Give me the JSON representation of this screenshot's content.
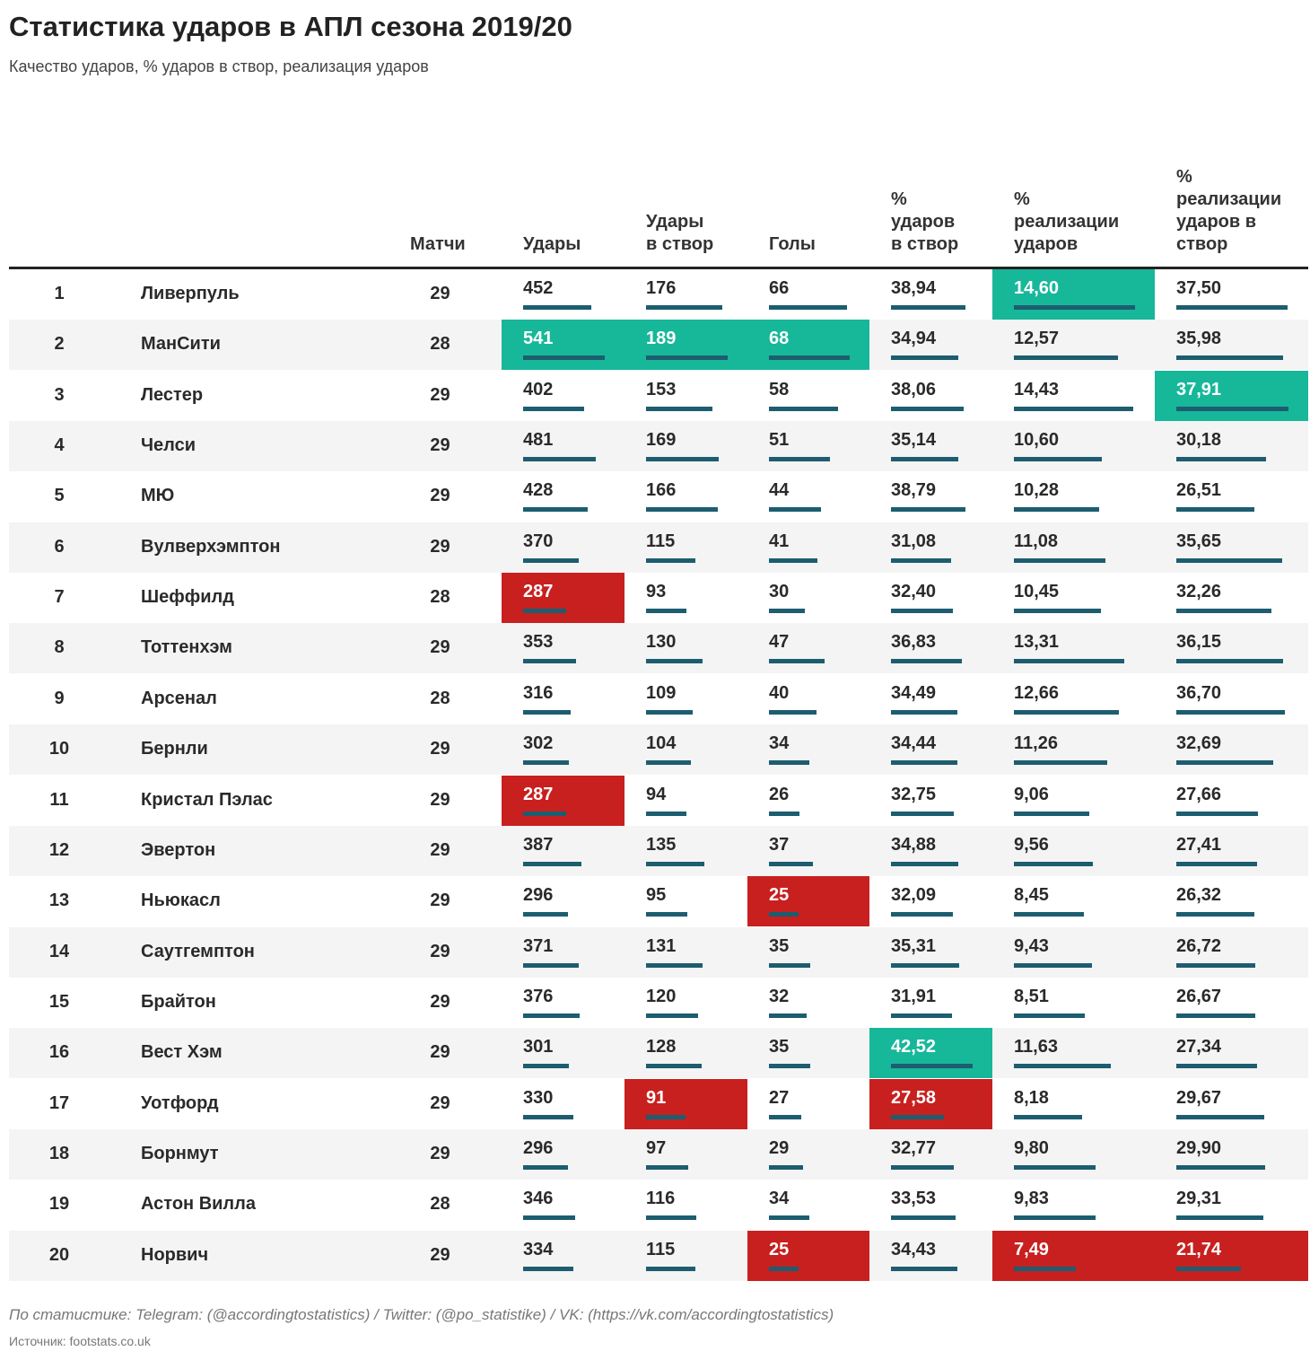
{
  "header": {
    "title": "Статистика ударов в АПЛ сезона 2019/20",
    "subtitle": "Качество ударов, % ударов в створ, реализация ударов"
  },
  "table": {
    "bar_color": "#1d5d70",
    "stripe_color": "#f4f4f4",
    "columns": [
      "Матчи",
      "Удары",
      "Удары\nв створ",
      "Голы",
      "%\nударов\nв створ",
      "%\nреализации\nударов",
      "%\nреализации\nударов в\nствор"
    ],
    "rows": [
      {
        "rank": 1,
        "team": "Ливерпуль",
        "cells": [
          29,
          452,
          176,
          66,
          {
            "value": 38.94,
            "label": "38,94"
          },
          {
            "value": 14.6,
            "label": "14,60",
            "color": "#17b79a"
          },
          {
            "value": 37.5,
            "label": "37,50"
          }
        ]
      },
      {
        "rank": 2,
        "team": "МанСити",
        "cells": [
          28,
          {
            "value": 541,
            "color": "#17b79a"
          },
          {
            "value": 189,
            "color": "#17b79a"
          },
          {
            "value": 68,
            "color": "#17b79a"
          },
          {
            "value": 34.94,
            "label": "34,94"
          },
          {
            "value": 12.57,
            "label": "12,57"
          },
          {
            "value": 35.98,
            "label": "35,98"
          }
        ]
      },
      {
        "rank": 3,
        "team": "Лестер",
        "cells": [
          29,
          402,
          153,
          58,
          {
            "value": 38.06,
            "label": "38,06"
          },
          {
            "value": 14.43,
            "label": "14,43"
          },
          {
            "value": 37.91,
            "label": "37,91",
            "color": "#17b79a"
          }
        ]
      },
      {
        "rank": 4,
        "team": "Челси",
        "cells": [
          29,
          481,
          169,
          51,
          {
            "value": 35.14,
            "label": "35,14"
          },
          {
            "value": 10.6,
            "label": "10,60"
          },
          {
            "value": 30.18,
            "label": "30,18"
          }
        ]
      },
      {
        "rank": 5,
        "team": "МЮ",
        "cells": [
          29,
          428,
          166,
          44,
          {
            "value": 38.79,
            "label": "38,79"
          },
          {
            "value": 10.28,
            "label": "10,28"
          },
          {
            "value": 26.51,
            "label": "26,51"
          }
        ]
      },
      {
        "rank": 6,
        "team": "Вулверхэмптон",
        "cells": [
          29,
          370,
          115,
          41,
          {
            "value": 31.08,
            "label": "31,08"
          },
          {
            "value": 11.08,
            "label": "11,08"
          },
          {
            "value": 35.65,
            "label": "35,65"
          }
        ]
      },
      {
        "rank": 7,
        "team": "Шеффилд",
        "cells": [
          28,
          {
            "value": 287,
            "color": "#c8201f"
          },
          93,
          30,
          {
            "value": 32.4,
            "label": "32,40"
          },
          {
            "value": 10.45,
            "label": "10,45"
          },
          {
            "value": 32.26,
            "label": "32,26"
          }
        ]
      },
      {
        "rank": 8,
        "team": "Тоттенхэм",
        "cells": [
          29,
          353,
          130,
          47,
          {
            "value": 36.83,
            "label": "36,83"
          },
          {
            "value": 13.31,
            "label": "13,31"
          },
          {
            "value": 36.15,
            "label": "36,15"
          }
        ]
      },
      {
        "rank": 9,
        "team": "Арсенал",
        "cells": [
          28,
          316,
          109,
          40,
          {
            "value": 34.49,
            "label": "34,49"
          },
          {
            "value": 12.66,
            "label": "12,66"
          },
          {
            "value": 36.7,
            "label": "36,70"
          }
        ]
      },
      {
        "rank": 10,
        "team": "Бернли",
        "cells": [
          29,
          302,
          104,
          34,
          {
            "value": 34.44,
            "label": "34,44"
          },
          {
            "value": 11.26,
            "label": "11,26"
          },
          {
            "value": 32.69,
            "label": "32,69"
          }
        ]
      },
      {
        "rank": 11,
        "team": "Кристал Пэлас",
        "cells": [
          29,
          {
            "value": 287,
            "color": "#c8201f"
          },
          94,
          26,
          {
            "value": 32.75,
            "label": "32,75"
          },
          {
            "value": 9.06,
            "label": "9,06"
          },
          {
            "value": 27.66,
            "label": "27,66"
          }
        ]
      },
      {
        "rank": 12,
        "team": "Эвертон",
        "cells": [
          29,
          387,
          135,
          37,
          {
            "value": 34.88,
            "label": "34,88"
          },
          {
            "value": 9.56,
            "label": "9,56"
          },
          {
            "value": 27.41,
            "label": "27,41"
          }
        ]
      },
      {
        "rank": 13,
        "team": "Ньюкасл",
        "cells": [
          29,
          296,
          95,
          {
            "value": 25,
            "color": "#c8201f"
          },
          {
            "value": 32.09,
            "label": "32,09"
          },
          {
            "value": 8.45,
            "label": "8,45"
          },
          {
            "value": 26.32,
            "label": "26,32"
          }
        ]
      },
      {
        "rank": 14,
        "team": "Саутгемптон",
        "cells": [
          29,
          371,
          131,
          35,
          {
            "value": 35.31,
            "label": "35,31"
          },
          {
            "value": 9.43,
            "label": "9,43"
          },
          {
            "value": 26.72,
            "label": "26,72"
          }
        ]
      },
      {
        "rank": 15,
        "team": "Брайтон",
        "cells": [
          29,
          376,
          120,
          32,
          {
            "value": 31.91,
            "label": "31,91"
          },
          {
            "value": 8.51,
            "label": "8,51"
          },
          {
            "value": 26.67,
            "label": "26,67"
          }
        ]
      },
      {
        "rank": 16,
        "team": "Вест Хэм",
        "cells": [
          29,
          301,
          128,
          35,
          {
            "value": 42.52,
            "label": "42,52",
            "color": "#17b79a"
          },
          {
            "value": 11.63,
            "label": "11,63"
          },
          {
            "value": 27.34,
            "label": "27,34"
          }
        ]
      },
      {
        "rank": 17,
        "team": "Уотфорд",
        "cells": [
          29,
          330,
          {
            "value": 91,
            "color": "#c8201f"
          },
          27,
          {
            "value": 27.58,
            "label": "27,58",
            "color": "#c8201f"
          },
          {
            "value": 8.18,
            "label": "8,18"
          },
          {
            "value": 29.67,
            "label": "29,67"
          }
        ]
      },
      {
        "rank": 18,
        "team": "Борнмут",
        "cells": [
          29,
          296,
          97,
          29,
          {
            "value": 32.77,
            "label": "32,77"
          },
          {
            "value": 9.8,
            "label": "9,80"
          },
          {
            "value": 29.9,
            "label": "29,90"
          }
        ]
      },
      {
        "rank": 19,
        "team": "Астон Вилла",
        "cells": [
          28,
          346,
          116,
          34,
          {
            "value": 33.53,
            "label": "33,53"
          },
          {
            "value": 9.83,
            "label": "9,83"
          },
          {
            "value": 29.31,
            "label": "29,31"
          }
        ]
      },
      {
        "rank": 20,
        "team": "Норвич",
        "cells": [
          29,
          334,
          115,
          {
            "value": 25,
            "color": "#c8201f"
          },
          {
            "value": 34.43,
            "label": "34,43"
          },
          {
            "value": 7.49,
            "label": "7,49",
            "color": "#c8201f"
          },
          {
            "value": 21.74,
            "label": "21,74",
            "color": "#c8201f"
          }
        ]
      }
    ]
  },
  "footer": {
    "note": "По статистике: Telegram: (@accordingtostatistics) / Twitter: (@po_statistike) / VK: (https://vk.com/accordingtostatistics)",
    "source": "Источник: footstats.co.uk"
  }
}
